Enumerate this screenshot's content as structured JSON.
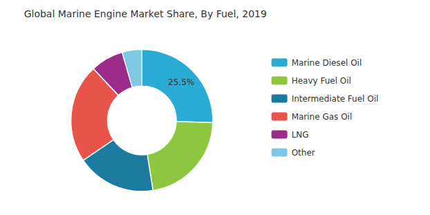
{
  "chart_data": {
    "type": "pie",
    "title": "Global Marine Engine Market Share, By Fuel, 2019",
    "categories": [
      "Marine Diesel Oil",
      "Heavy Fuel Oil",
      "Intermediate Fuel Oil",
      "Marine Gas Oil",
      "LNG",
      "Other"
    ],
    "values": [
      25.5,
      22.0,
      18.0,
      22.5,
      7.5,
      4.5
    ],
    "colors": [
      "#29ABD4",
      "#8DC63F",
      "#1B7A9E",
      "#E8534A",
      "#9B2C8A",
      "#7EC8E3"
    ],
    "annotation": "25.5%",
    "legend": "right"
  }
}
